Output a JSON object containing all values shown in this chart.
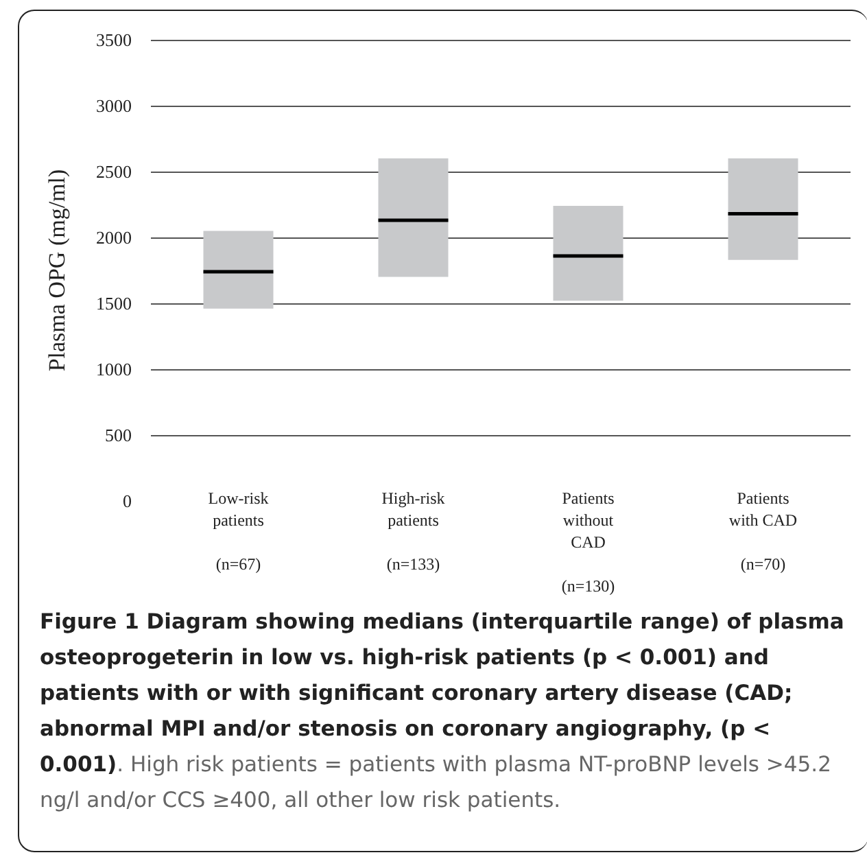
{
  "chart_data": {
    "type": "box",
    "ylabel": "Plasma OPG (mg/ml)",
    "categories": [
      "Low-risk\npatients\n\n(n=67)",
      "High-risk\npatients\n\n(n=133)",
      "Patients\nwithout\nCAD\n\n(n=130)",
      "Patients\nwith CAD\n\n(n=70)"
    ],
    "boxes": [
      {
        "low": 1460,
        "q1": 1460,
        "median": 1740,
        "q3": 2050,
        "high": 2050
      },
      {
        "low": 1700,
        "q1": 1700,
        "median": 2130,
        "q3": 2600,
        "high": 2600
      },
      {
        "low": 1520,
        "q1": 1520,
        "median": 1860,
        "q3": 2240,
        "high": 2240
      },
      {
        "low": 1830,
        "q1": 1830,
        "median": 2180,
        "q3": 2600,
        "high": 2600
      }
    ],
    "color": "#c8c9cb",
    "ylim": [
      0,
      3500
    ],
    "yticks": [
      0,
      500,
      1000,
      1500,
      2000,
      2500,
      3000,
      3500
    ],
    "grid": "y",
    "annotations": [
      "Figure 1 Diagram showing medians (interquartile range) of plasma osteoprogeterin in low vs. high-risk patients (p < 0.001) and patients with or with significant coronary artery disease (CAD; abnormal MPI and/or stenosis on coronary angiography, (p < 0.001)",
      ". High risk patients = patients with plasma NT-proBNP levels >45.2 ng/l and/or CCS ≥400, all other low risk patients."
    ]
  }
}
